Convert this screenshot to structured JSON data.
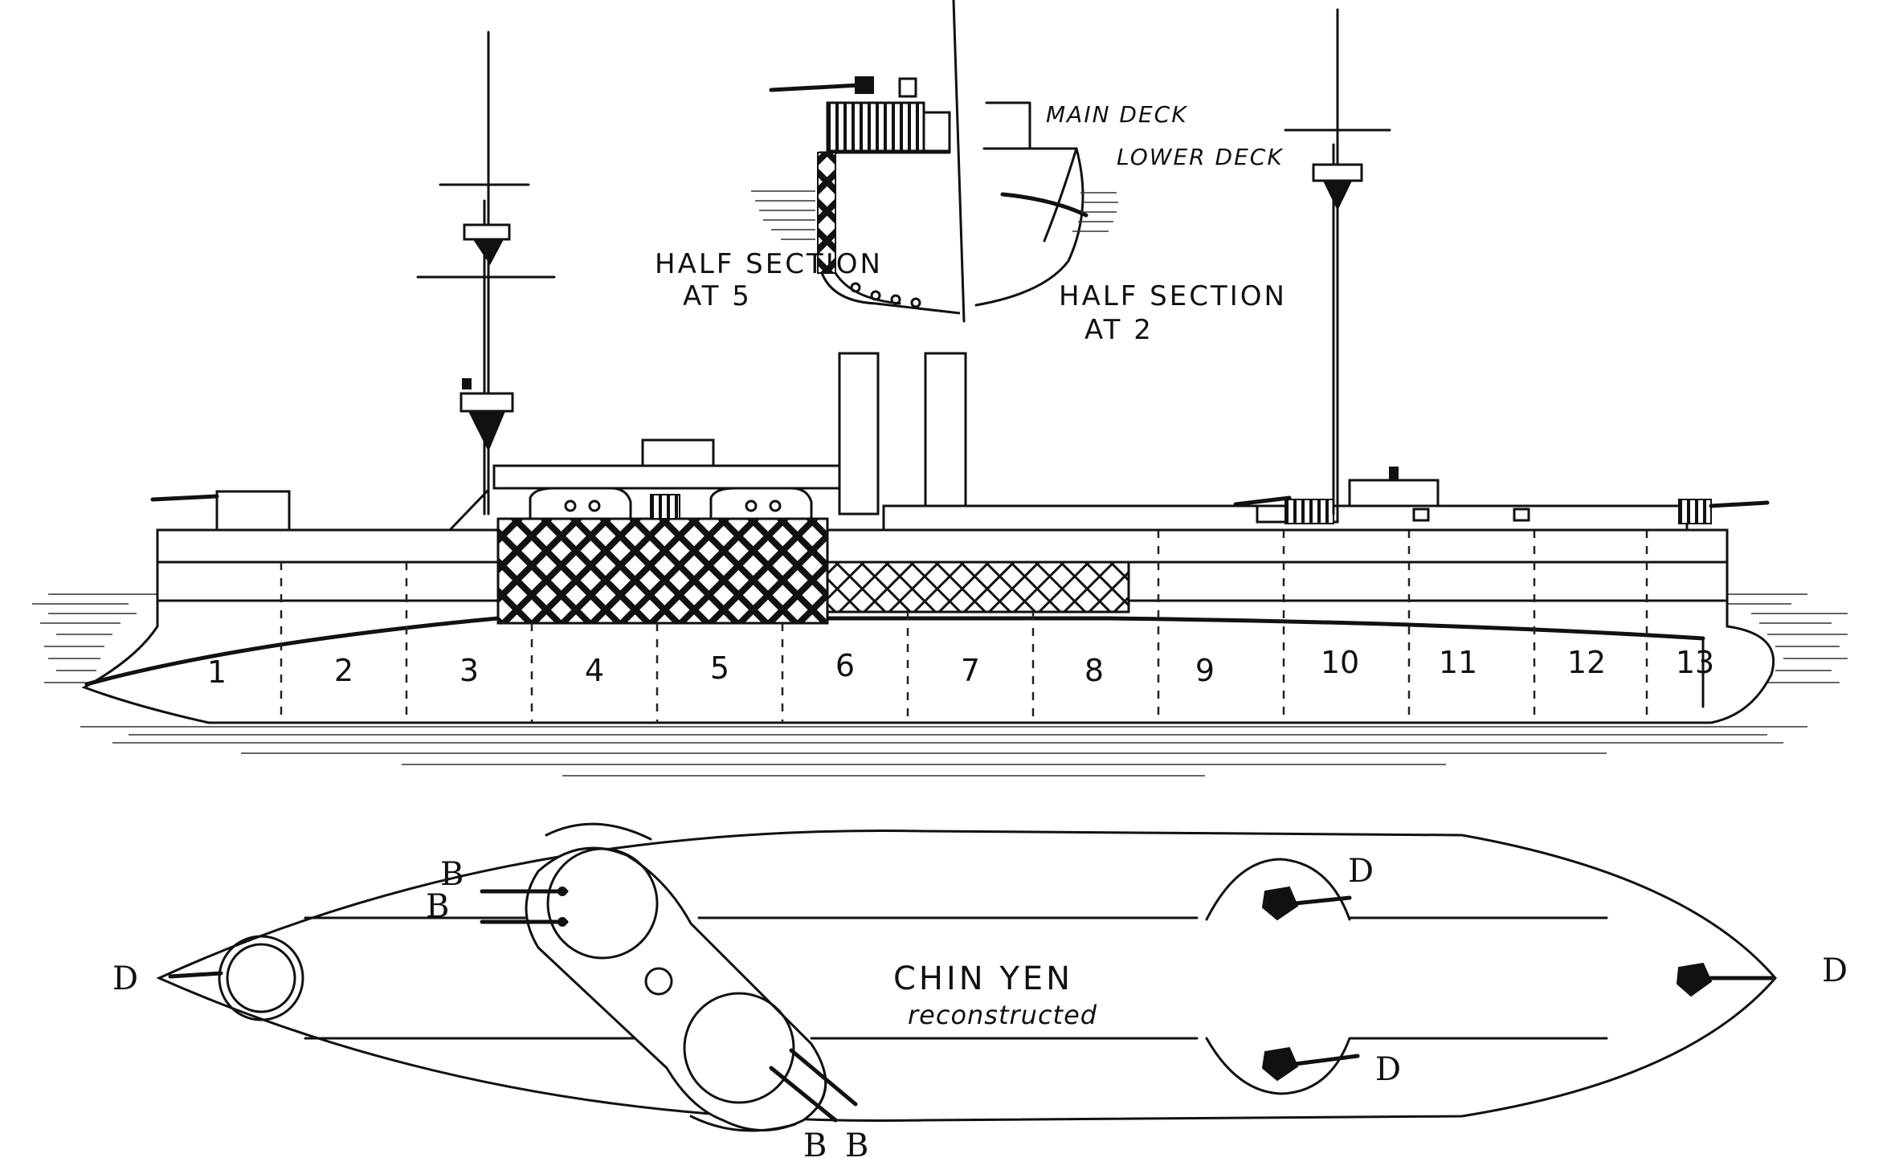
{
  "section_labels": {
    "main_deck": "MAIN DECK",
    "lower_deck": "LOWER DECK",
    "half_section_5_line1": "HALF SECTION",
    "half_section_5_line2": "AT 5",
    "half_section_2_line1": "HALF SECTION",
    "half_section_2_line2": "AT 2"
  },
  "frame_numbers": [
    "1",
    "2",
    "3",
    "4",
    "5",
    "6",
    "7",
    "8",
    "9",
    "10",
    "11",
    "12",
    "13"
  ],
  "plan": {
    "title": "CHIN YEN",
    "subtitle": "reconstructed",
    "gun_labels": {
      "bow_d": "D",
      "stern_d": "D",
      "fwd_turret_d": "D",
      "aft_turret_d": "D",
      "barbette_b_upper": "B",
      "barbette_b_lower": "B",
      "barbette_b_bottom_left": "B",
      "barbette_b_bottom_right": "B"
    }
  },
  "colors": {
    "ink": "#111111",
    "paper": "#ffffff"
  }
}
